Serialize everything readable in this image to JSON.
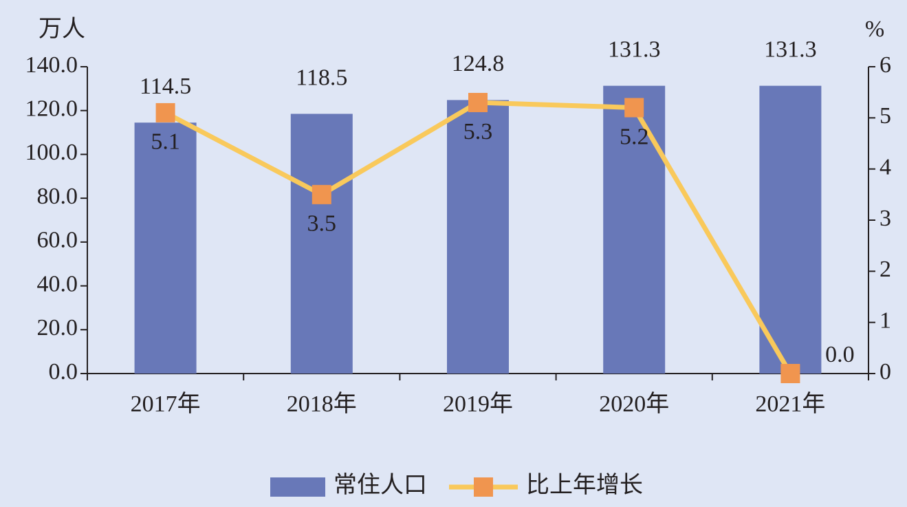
{
  "chart_data": {
    "type": "bar-line",
    "y_label": "万人",
    "y2_label": "%",
    "categories": [
      "2017年",
      "2018年",
      "2019年",
      "2020年",
      "2021年"
    ],
    "series": [
      {
        "name": "常住人口",
        "type": "bar",
        "color": "#6878b8",
        "values": [
          114.5,
          118.5,
          124.8,
          131.3,
          131.3
        ]
      },
      {
        "name": "比上年增长",
        "type": "line",
        "axis": "y2",
        "color": "#f9c95b",
        "marker_color": "#f0954f",
        "values": [
          5.1,
          3.5,
          5.3,
          5.2,
          0.0
        ],
        "value_labels": [
          "5.1",
          "3.5",
          "5.3",
          "5.2",
          "0.0"
        ]
      }
    ],
    "ylim": [
      0,
      140
    ],
    "yticks": [
      {
        "value": 0,
        "label": "0.0"
      },
      {
        "value": 20,
        "label": "20.0"
      },
      {
        "value": 40,
        "label": "40.0"
      },
      {
        "value": 60,
        "label": "60.0"
      },
      {
        "value": 80,
        "label": "80.0"
      },
      {
        "value": 100,
        "label": "100.0"
      },
      {
        "value": 120,
        "label": "120.0"
      },
      {
        "value": 140,
        "label": "140.0"
      }
    ],
    "y2lim": [
      0,
      6
    ],
    "y2ticks": [
      0,
      1,
      2,
      3,
      4,
      5,
      6
    ]
  }
}
